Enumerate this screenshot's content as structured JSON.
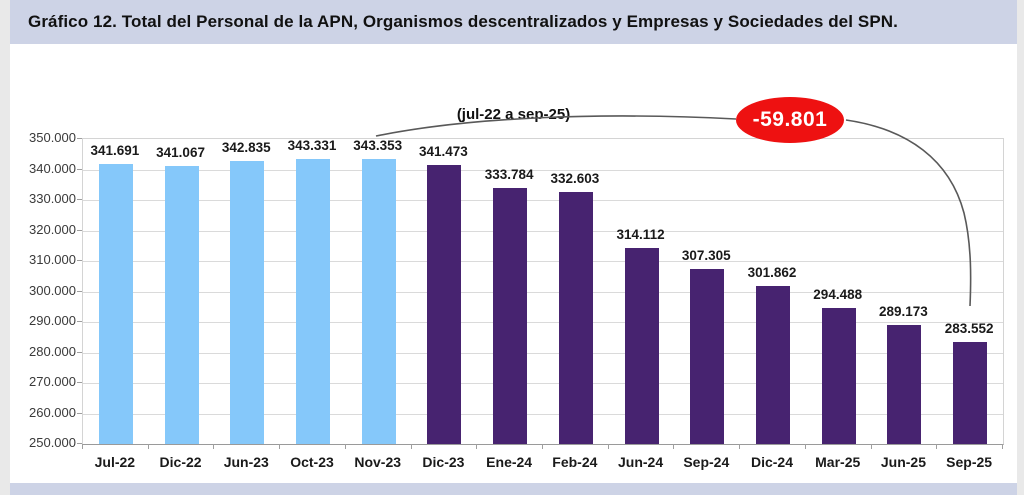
{
  "chart_data": {
    "type": "bar",
    "title": "Gráfico 12. Total del Personal de la APN, Organismos descentralizados y Empresas y Sociedades del SPN.",
    "subtitle": "(jul-22 a sep-25)",
    "categories": [
      "Jul-22",
      "Dic-22",
      "Jun-23",
      "Oct-23",
      "Nov-23",
      "Dic-23",
      "Ene-24",
      "Feb-24",
      "Jun-24",
      "Sep-24",
      "Dic-24",
      "Mar-25",
      "Jun-25",
      "Sep-25"
    ],
    "values": [
      341691,
      341067,
      342835,
      343331,
      343353,
      341473,
      333784,
      332603,
      314112,
      307305,
      301862,
      294488,
      289173,
      283552
    ],
    "value_labels": [
      "341.691",
      "341.067",
      "342.835",
      "343.331",
      "343.353",
      "341.473",
      "333.784",
      "332.603",
      "314.112",
      "307.305",
      "301.862",
      "294.488",
      "289.173",
      "283.552"
    ],
    "ylim": [
      250000,
      350000
    ],
    "ytick_step": 10000,
    "ytick_labels": [
      "250.000",
      "260.000",
      "270.000",
      "280.000",
      "290.000",
      "300.000",
      "310.000",
      "320.000",
      "330.000",
      "340.000",
      "350.000"
    ],
    "xlabel": "",
    "ylabel": "",
    "grid": true,
    "legend": false,
    "bar_color_split_index": 5,
    "annotation": {
      "text": "-59.801",
      "from_category": "Nov-23",
      "to_category": "Sep-25"
    },
    "colors": {
      "bars_early": "#85c8fa",
      "bars_late": "#472370",
      "annotation_fill": "#ee1111",
      "annotation_text": "#ffffff",
      "connector": "#595959",
      "title_band": "#cdd3e6",
      "grid": "#dadada"
    }
  }
}
